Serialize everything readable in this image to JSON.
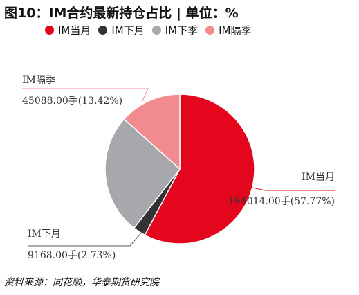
{
  "chart_data": {
    "type": "pie",
    "title": "图10：IM合约最新持仓占比 | 单位：%",
    "legend_position": "top",
    "series": [
      {
        "name": "IM当月",
        "value": 57.77,
        "label": "194014.00手(57.77%)",
        "color": "#e3061c"
      },
      {
        "name": "IM下月",
        "value": 2.73,
        "label": "9168.00手(2.73%)",
        "color": "#333333"
      },
      {
        "name": "IM下季",
        "value": 26.08,
        "label": "",
        "color": "#a6a8ab"
      },
      {
        "name": "IM隔季",
        "value": 13.42,
        "label": "45088.00手(13.42%)",
        "color": "#f28b90"
      }
    ]
  },
  "source": "资料来源：同花顺，华泰期货研究院"
}
